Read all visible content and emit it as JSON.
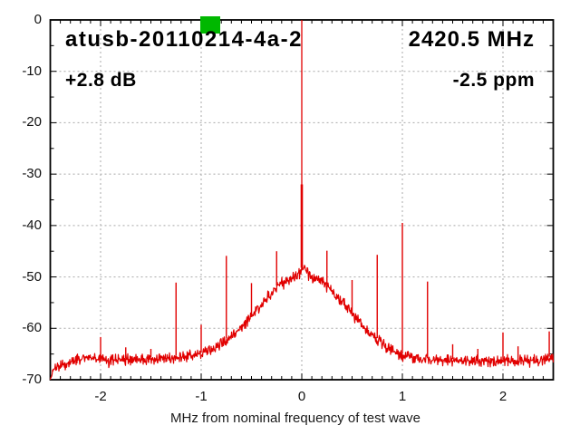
{
  "header": {
    "title": "atusb-20110214-4a-2",
    "frequency": "2420.5 MHz",
    "gain": "+2.8 dB",
    "ppm": "-2.5 ppm"
  },
  "chart_data": {
    "type": "line",
    "title": "atusb-20110214-4a-2",
    "xlabel": "MHz from nominal frequency of test wave",
    "ylabel": "",
    "xlim": [
      -2.5,
      2.5
    ],
    "ylim": [
      -70,
      0
    ],
    "grid": true,
    "x_ticks": [
      -2,
      -1,
      0,
      1,
      2
    ],
    "x_tick_labels": [
      "-2",
      "-1",
      "0",
      "1",
      "2"
    ],
    "x_minor_step": 0.1,
    "y_ticks": [
      0,
      -10,
      -20,
      -30,
      -40,
      -50,
      -60,
      -70
    ],
    "y_tick_labels": [
      "0",
      "-10",
      "-20",
      "-30",
      "-40",
      "-50",
      "-60",
      "-70"
    ],
    "y_minor_step": 5,
    "trace_color": "#e10000",
    "grid_color": "#a8a8a8",
    "marker": {
      "shape": "square",
      "color": "#00b800",
      "freq": -0.91
    },
    "carrier": {
      "freq": 0.0,
      "peak_dB": 0,
      "narrow_above_dB": -32
    },
    "spurs": [
      [
        -2.0,
        -61.7
      ],
      [
        -1.75,
        -63.7
      ],
      [
        -1.5,
        -64.0
      ],
      [
        -1.25,
        -51.1
      ],
      [
        -1.0,
        -59.3
      ],
      [
        -0.75,
        -45.9
      ],
      [
        -0.5,
        -51.2
      ],
      [
        -0.25,
        -45.0
      ],
      [
        0.25,
        -44.9
      ],
      [
        0.5,
        -50.6
      ],
      [
        0.75,
        -45.7
      ],
      [
        1.0,
        -39.5
      ],
      [
        1.25,
        -50.9
      ],
      [
        1.5,
        -63.1
      ],
      [
        1.75,
        -64.0
      ],
      [
        2.0,
        -60.8
      ],
      [
        2.15,
        -63.5
      ],
      [
        2.46,
        -60.6
      ]
    ],
    "noise_envelope": [
      [
        -2.5,
        -70.0
      ],
      [
        -2.47,
        -68.2
      ],
      [
        -2.44,
        -67.4
      ],
      [
        -2.38,
        -67.1
      ],
      [
        -2.3,
        -66.7
      ],
      [
        -2.22,
        -66.1
      ],
      [
        -2.15,
        -65.6
      ],
      [
        -2.08,
        -65.7
      ],
      [
        -2.0,
        -66.2
      ],
      [
        -1.9,
        -66.2
      ],
      [
        -1.75,
        -66.1
      ],
      [
        -1.6,
        -66.1
      ],
      [
        -1.45,
        -65.9
      ],
      [
        -1.3,
        -65.7
      ],
      [
        -1.2,
        -65.5
      ],
      [
        -1.1,
        -65.3
      ],
      [
        -1.0,
        -65.0
      ],
      [
        -0.95,
        -64.6
      ],
      [
        -0.9,
        -64.1
      ],
      [
        -0.85,
        -63.6
      ],
      [
        -0.8,
        -63.0
      ],
      [
        -0.75,
        -62.3
      ],
      [
        -0.7,
        -61.5
      ],
      [
        -0.65,
        -60.6
      ],
      [
        -0.6,
        -59.7
      ],
      [
        -0.55,
        -58.7
      ],
      [
        -0.5,
        -57.6
      ],
      [
        -0.45,
        -56.5
      ],
      [
        -0.4,
        -55.4
      ],
      [
        -0.35,
        -54.2
      ],
      [
        -0.3,
        -53.0
      ],
      [
        -0.25,
        -52.0
      ],
      [
        -0.2,
        -51.2
      ],
      [
        -0.15,
        -50.6
      ],
      [
        -0.1,
        -50.2
      ],
      [
        -0.05,
        -49.9
      ],
      [
        -0.02,
        -49.6
      ],
      [
        0.02,
        -47.8
      ],
      [
        0.05,
        -49.3
      ],
      [
        0.1,
        -49.9
      ],
      [
        0.15,
        -50.4
      ],
      [
        0.2,
        -51.0
      ],
      [
        0.25,
        -51.8
      ],
      [
        0.3,
        -52.8
      ],
      [
        0.35,
        -53.9
      ],
      [
        0.4,
        -55.0
      ],
      [
        0.45,
        -56.1
      ],
      [
        0.5,
        -57.2
      ],
      [
        0.55,
        -58.3
      ],
      [
        0.6,
        -59.4
      ],
      [
        0.65,
        -60.4
      ],
      [
        0.7,
        -61.3
      ],
      [
        0.75,
        -62.2
      ],
      [
        0.8,
        -63.0
      ],
      [
        0.85,
        -63.7
      ],
      [
        0.9,
        -64.3
      ],
      [
        0.95,
        -64.8
      ],
      [
        1.0,
        -65.2
      ],
      [
        1.1,
        -65.7
      ],
      [
        1.2,
        -66.0
      ],
      [
        1.35,
        -66.2
      ],
      [
        1.55,
        -66.3
      ],
      [
        1.8,
        -66.4
      ],
      [
        2.0,
        -66.4
      ],
      [
        2.2,
        -66.3
      ],
      [
        2.35,
        -66.1
      ],
      [
        2.5,
        -65.7
      ]
    ]
  }
}
